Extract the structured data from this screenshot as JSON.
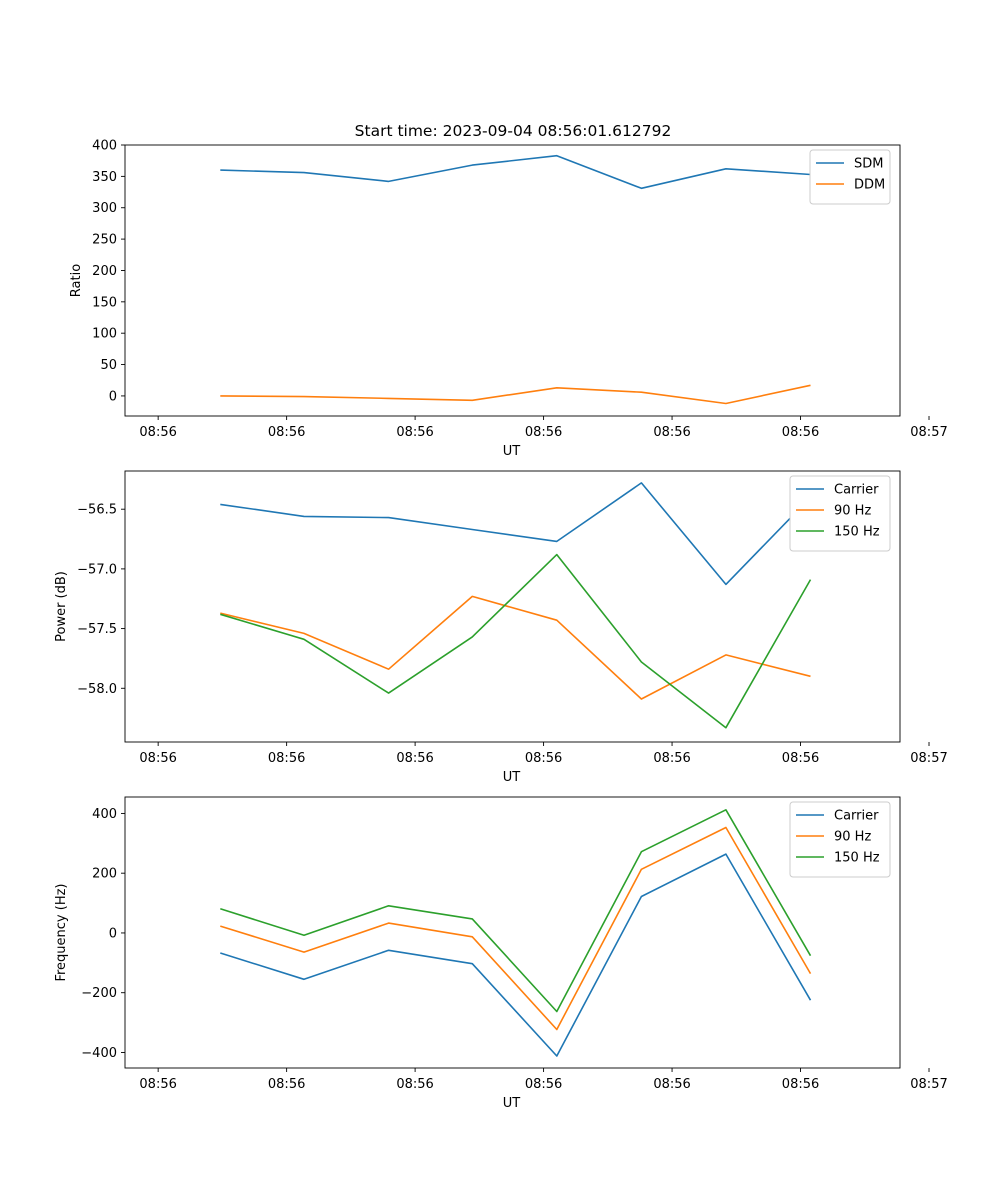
{
  "figure_title": "Start time: 2023-09-04 08:56:01.612792",
  "chart_data": [
    {
      "type": "line",
      "ylabel": "Ratio",
      "xlabel": "UT",
      "xlim": [
        -0.4,
        8.95
      ],
      "ylim": [
        -32,
        400
      ],
      "yticks": [
        0,
        50,
        100,
        150,
        200,
        250,
        300,
        350,
        400
      ],
      "ytick_labels": [
        "0",
        "50",
        "100",
        "150",
        "200",
        "250",
        "300",
        "350",
        "400"
      ],
      "xticks": [
        0,
        1.55,
        3.1,
        4.65,
        6.2,
        7.75,
        9.3
      ],
      "xtick_labels": [
        "08:56",
        "08:56",
        "08:56",
        "08:56",
        "08:56",
        "08:56",
        "08:57"
      ],
      "x": [
        0.75,
        1.76,
        2.78,
        3.79,
        4.81,
        5.83,
        6.85,
        7.87
      ],
      "legend_position": "top-right",
      "series": [
        {
          "name": "SDM",
          "color": "#1f77b4",
          "values": [
            360,
            356,
            342,
            368,
            383,
            331,
            362,
            353
          ]
        },
        {
          "name": "DDM",
          "color": "#ff7f0e",
          "values": [
            0,
            -1,
            -4,
            -7,
            13,
            6,
            -12,
            17
          ]
        }
      ]
    },
    {
      "type": "line",
      "ylabel": "Power (dB)",
      "xlabel": "UT",
      "xlim": [
        -0.4,
        8.95
      ],
      "ylim": [
        -58.45,
        -56.18
      ],
      "yticks": [
        -58.0,
        -57.5,
        -57.0,
        -56.5
      ],
      "ytick_labels": [
        "−58.0",
        "−57.5",
        "−57.0",
        "−56.5"
      ],
      "xticks": [
        0,
        1.55,
        3.1,
        4.65,
        6.2,
        7.75,
        9.3
      ],
      "xtick_labels": [
        "08:56",
        "08:56",
        "08:56",
        "08:56",
        "08:56",
        "08:56",
        "08:57"
      ],
      "x": [
        0.75,
        1.76,
        2.78,
        3.79,
        4.81,
        5.83,
        6.85,
        7.87
      ],
      "legend_position": "top-right",
      "series": [
        {
          "name": "Carrier",
          "color": "#1f77b4",
          "values": [
            -56.46,
            -56.56,
            -56.57,
            -56.67,
            -56.77,
            -56.28,
            -57.13,
            -56.4
          ]
        },
        {
          "name": "90 Hz",
          "color": "#ff7f0e",
          "values": [
            -57.37,
            -57.54,
            -57.84,
            -57.23,
            -57.43,
            -58.09,
            -57.72,
            -57.9
          ]
        },
        {
          "name": "150 Hz",
          "color": "#2ca02c",
          "values": [
            -57.38,
            -57.59,
            -58.04,
            -57.57,
            -56.88,
            -57.78,
            -58.33,
            -57.09
          ]
        }
      ]
    },
    {
      "type": "line",
      "ylabel": "Frequency (Hz)",
      "xlabel": "UT",
      "xlim": [
        -0.4,
        8.95
      ],
      "ylim": [
        -452,
        455
      ],
      "yticks": [
        -400,
        -200,
        0,
        200,
        400
      ],
      "ytick_labels": [
        "−400",
        "−200",
        "0",
        "200",
        "400"
      ],
      "xticks": [
        0,
        1.55,
        3.1,
        4.65,
        6.2,
        7.75,
        9.3
      ],
      "xtick_labels": [
        "08:56",
        "08:56",
        "08:56",
        "08:56",
        "08:56",
        "08:56",
        "08:57"
      ],
      "x": [
        0.75,
        1.76,
        2.78,
        3.79,
        4.81,
        5.83,
        6.85,
        7.87
      ],
      "legend_position": "top-right",
      "series": [
        {
          "name": "Carrier",
          "color": "#1f77b4",
          "values": [
            -67,
            -155,
            -58,
            -103,
            -412,
            122,
            264,
            -225
          ]
        },
        {
          "name": "90 Hz",
          "color": "#ff7f0e",
          "values": [
            23,
            -64,
            33,
            -13,
            -323,
            213,
            353,
            -136
          ]
        },
        {
          "name": "150 Hz",
          "color": "#2ca02c",
          "values": [
            81,
            -8,
            91,
            47,
            -263,
            272,
            412,
            -76
          ]
        }
      ]
    }
  ]
}
